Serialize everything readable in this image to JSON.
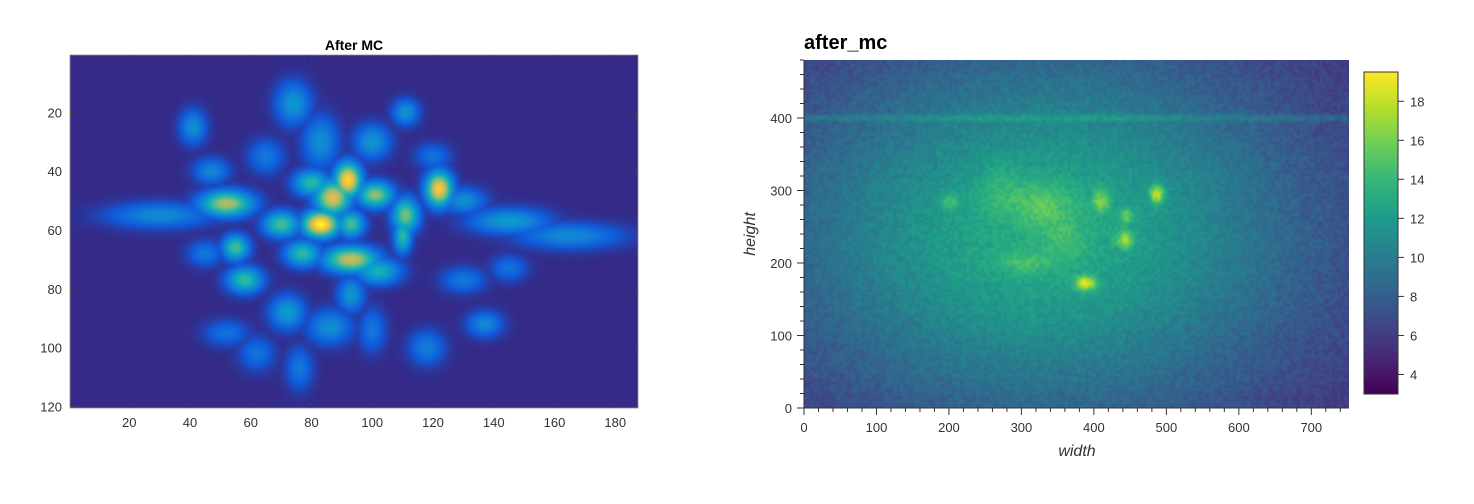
{
  "chart_data": [
    {
      "type": "heatmap",
      "title": "After MC",
      "xlabel": "",
      "ylabel": "",
      "xlim": [
        1,
        187
      ],
      "ylim": [
        1,
        120
      ],
      "y_inverted": true,
      "xticks": [
        20,
        40,
        60,
        80,
        100,
        120,
        140,
        160,
        180
      ],
      "xtick_labels": [
        "20",
        "40",
        "60",
        "80",
        "100",
        "120",
        "140",
        "160",
        "180"
      ],
      "yticks": [
        20,
        40,
        60,
        80,
        100,
        120
      ],
      "ytick_labels": [
        "20",
        "40",
        "60",
        "80",
        "100",
        "120"
      ],
      "colormap": "parula",
      "colormap_stops": [
        "#352a87",
        "#0f5cdd",
        "#1481d6",
        "#06a4ca",
        "#2eb7a4",
        "#87bf77",
        "#d1bb59",
        "#fec832",
        "#f9fb0e"
      ],
      "blobs": [
        {
          "x": 83,
          "y": 58,
          "w": 4,
          "h": 3,
          "v": 1.0
        },
        {
          "x": 92,
          "y": 43,
          "w": 3,
          "h": 4,
          "v": 0.92
        },
        {
          "x": 122,
          "y": 46,
          "w": 3,
          "h": 4,
          "v": 0.88
        },
        {
          "x": 87,
          "y": 49,
          "w": 4,
          "h": 4,
          "v": 0.8
        },
        {
          "x": 52,
          "y": 51,
          "w": 6,
          "h": 3,
          "v": 0.7
        },
        {
          "x": 93,
          "y": 70,
          "w": 6,
          "h": 3,
          "v": 0.75
        },
        {
          "x": 101,
          "y": 48,
          "w": 4,
          "h": 3,
          "v": 0.65
        },
        {
          "x": 111,
          "y": 55,
          "w": 3,
          "h": 4,
          "v": 0.62
        },
        {
          "x": 110,
          "y": 62,
          "w": 2,
          "h": 4,
          "v": 0.5
        },
        {
          "x": 70,
          "y": 58,
          "w": 4,
          "h": 3,
          "v": 0.55
        },
        {
          "x": 77,
          "y": 68,
          "w": 4,
          "h": 3,
          "v": 0.5
        },
        {
          "x": 55,
          "y": 66,
          "w": 3,
          "h": 3,
          "v": 0.55
        },
        {
          "x": 58,
          "y": 77,
          "w": 4,
          "h": 3,
          "v": 0.52
        },
        {
          "x": 80,
          "y": 44,
          "w": 4,
          "h": 3,
          "v": 0.5
        },
        {
          "x": 102,
          "y": 74,
          "w": 5,
          "h": 3,
          "v": 0.45
        },
        {
          "x": 93,
          "y": 58,
          "w": 3,
          "h": 3,
          "v": 0.55
        },
        {
          "x": 72,
          "y": 88,
          "w": 4,
          "h": 4,
          "v": 0.35
        },
        {
          "x": 93,
          "y": 82,
          "w": 3,
          "h": 4,
          "v": 0.33
        },
        {
          "x": 86,
          "y": 93,
          "w": 5,
          "h": 4,
          "v": 0.3
        },
        {
          "x": 100,
          "y": 30,
          "w": 4,
          "h": 4,
          "v": 0.33
        },
        {
          "x": 111,
          "y": 20,
          "w": 3,
          "h": 3,
          "v": 0.32
        },
        {
          "x": 74,
          "y": 17,
          "w": 4,
          "h": 5,
          "v": 0.33
        },
        {
          "x": 41,
          "y": 25,
          "w": 3,
          "h": 4,
          "v": 0.3
        },
        {
          "x": 47,
          "y": 40,
          "w": 4,
          "h": 3,
          "v": 0.27
        },
        {
          "x": 130,
          "y": 50,
          "w": 5,
          "h": 3,
          "v": 0.3
        },
        {
          "x": 145,
          "y": 57,
          "w": 9,
          "h": 3,
          "v": 0.35
        },
        {
          "x": 165,
          "y": 62,
          "w": 12,
          "h": 3,
          "v": 0.28
        },
        {
          "x": 30,
          "y": 55,
          "w": 12,
          "h": 3,
          "v": 0.28
        },
        {
          "x": 130,
          "y": 77,
          "w": 5,
          "h": 3,
          "v": 0.22
        },
        {
          "x": 137,
          "y": 92,
          "w": 4,
          "h": 3,
          "v": 0.28
        },
        {
          "x": 118,
          "y": 100,
          "w": 4,
          "h": 4,
          "v": 0.24
        },
        {
          "x": 52,
          "y": 95,
          "w": 5,
          "h": 3,
          "v": 0.2
        },
        {
          "x": 100,
          "y": 94,
          "w": 3,
          "h": 5,
          "v": 0.22
        },
        {
          "x": 76,
          "y": 107,
          "w": 3,
          "h": 5,
          "v": 0.22
        },
        {
          "x": 62,
          "y": 102,
          "w": 4,
          "h": 4,
          "v": 0.2
        },
        {
          "x": 45,
          "y": 68,
          "w": 4,
          "h": 3,
          "v": 0.22
        },
        {
          "x": 120,
          "y": 35,
          "w": 4,
          "h": 3,
          "v": 0.2
        },
        {
          "x": 65,
          "y": 35,
          "w": 4,
          "h": 4,
          "v": 0.22
        },
        {
          "x": 83,
          "y": 30,
          "w": 4,
          "h": 6,
          "v": 0.3
        },
        {
          "x": 145,
          "y": 73,
          "w": 4,
          "h": 3,
          "v": 0.2
        }
      ]
    },
    {
      "type": "heatmap",
      "title": "after_mc",
      "xlabel": "width",
      "ylabel": "height",
      "xlim": [
        0,
        752
      ],
      "ylim": [
        0,
        480
      ],
      "xticks": [
        0,
        100,
        200,
        300,
        400,
        500,
        600,
        700
      ],
      "xtick_labels": [
        "0",
        "100",
        "200",
        "300",
        "400",
        "500",
        "600",
        "700"
      ],
      "yticks": [
        0,
        100,
        200,
        300,
        400
      ],
      "ytick_labels": [
        "0",
        "100",
        "200",
        "300",
        "400"
      ],
      "colormap": "viridis",
      "colormap_stops": [
        "#440154",
        "#482878",
        "#3e4989",
        "#31688e",
        "#26828e",
        "#1f9e89",
        "#35b779",
        "#6ece58",
        "#b5de2b",
        "#fde725"
      ],
      "clim": [
        3,
        19.5
      ],
      "colorbar_ticks": [
        4,
        6,
        8,
        10,
        12,
        14,
        16,
        18
      ],
      "colorbar_tick_labels": [
        "4",
        "6",
        "8",
        "10",
        "12",
        "14",
        "16",
        "18"
      ],
      "background": {
        "center_x": 330,
        "center_y": 240,
        "radius_x": 470,
        "radius_y": 330,
        "min": 5,
        "max": 13
      },
      "stripe": {
        "y": 400,
        "value": 2
      },
      "spots": [
        {
          "x": 388,
          "y": 172,
          "w": 10,
          "h": 7,
          "v": 7
        },
        {
          "x": 487,
          "y": 295,
          "w": 7,
          "h": 9,
          "v": 7
        },
        {
          "x": 443,
          "y": 232,
          "w": 8,
          "h": 8,
          "v": 5
        },
        {
          "x": 410,
          "y": 285,
          "w": 8,
          "h": 10,
          "v": 4.5
        },
        {
          "x": 445,
          "y": 265,
          "w": 7,
          "h": 7,
          "v": 3.5
        },
        {
          "x": 200,
          "y": 285,
          "w": 9,
          "h": 8,
          "v": 2.5
        },
        {
          "x": 330,
          "y": 280,
          "w": 30,
          "h": 22,
          "v": 2.5
        },
        {
          "x": 305,
          "y": 200,
          "w": 25,
          "h": 10,
          "v": 2
        },
        {
          "x": 270,
          "y": 300,
          "w": 20,
          "h": 25,
          "v": 1.5
        },
        {
          "x": 360,
          "y": 230,
          "w": 20,
          "h": 18,
          "v": 1.5
        }
      ]
    }
  ]
}
